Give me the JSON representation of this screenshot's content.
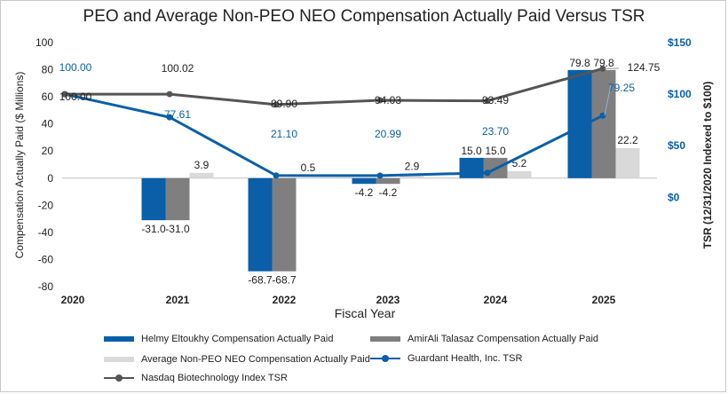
{
  "chart_data": {
    "type": "bar+line",
    "title": "PEO and Average Non-PEO NEO Compensation Actually Paid Versus TSR",
    "xlabel": "Fiscal Year",
    "ylabel_left": "Compensation Actually Paid ($ Millions)",
    "ylabel_right": "TSR (12/31/2020 Indexed to $100)",
    "categories": [
      "2020",
      "2021",
      "2022",
      "2023",
      "2024",
      "2025"
    ],
    "left_axis": {
      "ylim": [
        -80,
        100
      ],
      "ticks": [
        "100",
        "80",
        "60",
        "40",
        "20",
        "0",
        "-20",
        "-40",
        "-60",
        "-80"
      ]
    },
    "right_axis": {
      "ylim": [
        -86.66,
        150
      ],
      "ticks": [
        "$150",
        "$100",
        "$50",
        "$0"
      ]
    },
    "bar_series": [
      {
        "name": "Helmy Eltoukhy Compensation Actually Paid",
        "color": "#0a5fa8",
        "values": [
          null,
          -31.0,
          -68.7,
          -4.2,
          15.0,
          79.8
        ],
        "labels": [
          "",
          "-31.0",
          "-68.7",
          "-4.2",
          "15.0",
          "79.8"
        ]
      },
      {
        "name": "AmirAli Talasaz Compensation Actually Paid",
        "color": "#7f7f7f",
        "values": [
          null,
          -31.0,
          -68.7,
          -4.2,
          15.0,
          79.8
        ],
        "labels": [
          "",
          "-31.0",
          "-68.7",
          "-4.2",
          "15.0",
          "79.8"
        ]
      },
      {
        "name": "Average Non-PEO NEO Compensation Actually Paid",
        "color": "#d9d9d9",
        "values": [
          null,
          3.9,
          0.5,
          2.9,
          5.2,
          22.2
        ],
        "labels": [
          "",
          "3.9",
          "0.5",
          "2.9",
          "5.2",
          "22.2"
        ]
      }
    ],
    "line_series": [
      {
        "name": "Guardant Health, Inc. TSR",
        "color": "#0a5fa8",
        "values": [
          100.0,
          77.61,
          21.1,
          20.99,
          23.7,
          79.25
        ],
        "labels": [
          "100.00",
          "77.61",
          "21.10",
          "20.99",
          "23.70",
          "79.25"
        ]
      },
      {
        "name": "Nasdaq Biotechnology Index TSR",
        "color": "#555555",
        "values": [
          100.0,
          100.02,
          89.9,
          94.03,
          93.49,
          124.75
        ],
        "labels": [
          "100.00",
          "100.02",
          "89.90",
          "94.03",
          "93.49",
          "124.75"
        ]
      }
    ],
    "grid": false,
    "legend_position": "bottom"
  },
  "legend": [
    {
      "label": "Helmy Eltoukhy Compensation Actually Paid",
      "kind": "bar",
      "color": "#0a5fa8"
    },
    {
      "label": "AmirAli Talasaz Compensation Actually Paid",
      "kind": "bar",
      "color": "#7f7f7f"
    },
    {
      "label": "Average Non-PEO NEO Compensation Actually Paid",
      "kind": "bar",
      "color": "#d9d9d9"
    },
    {
      "label": "Guardant Health, Inc. TSR",
      "kind": "line",
      "color": "#0a5fa8"
    },
    {
      "label": "Nasdaq Biotechnology Index TSR",
      "kind": "line",
      "color": "#555555"
    }
  ]
}
